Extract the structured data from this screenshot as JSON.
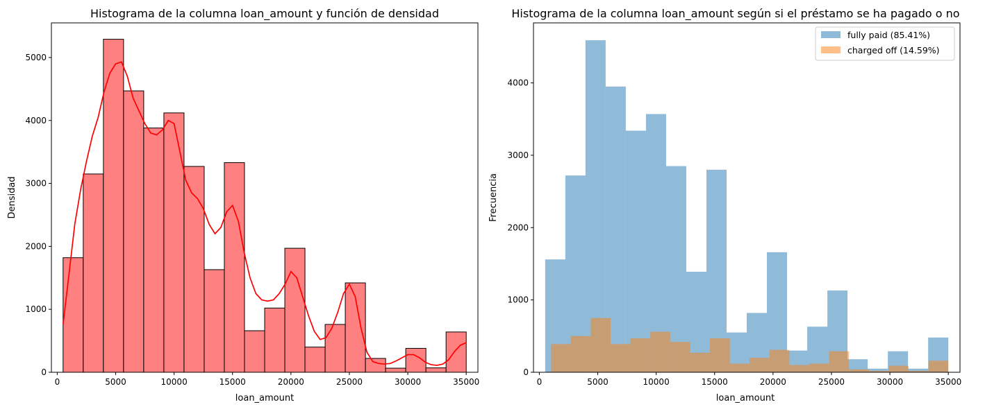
{
  "chart_data": [
    {
      "type": "bar",
      "title": "Histograma de la columna loan_amount y función de densidad",
      "xlabel": "loan_amount",
      "ylabel": "Densidad",
      "xlim": [
        -500,
        36000
      ],
      "ylim": [
        0,
        5550
      ],
      "x_ticks": [
        0,
        5000,
        10000,
        15000,
        20000,
        25000,
        30000,
        35000
      ],
      "y_ticks": [
        0,
        1000,
        2000,
        3000,
        4000,
        5000
      ],
      "bin_edges": [
        500,
        2225,
        3950,
        5675,
        7400,
        9125,
        10850,
        12575,
        14300,
        16025,
        17750,
        19475,
        21200,
        22925,
        24650,
        26375,
        28100,
        29825,
        31550,
        33275,
        35000
      ],
      "counts": [
        1820,
        3150,
        5290,
        4470,
        3880,
        4120,
        3270,
        1630,
        3330,
        660,
        1020,
        1970,
        400,
        760,
        1420,
        220,
        65,
        380,
        70,
        640
      ],
      "bar_color": "#ff8080",
      "bar_edge_color": "#000000",
      "kde": {
        "color": "#ff0000",
        "x": [
          500,
          1000,
          1500,
          2000,
          2500,
          3000,
          3500,
          4000,
          4500,
          5000,
          5500,
          6000,
          6500,
          7000,
          7500,
          8000,
          8500,
          9000,
          9500,
          10000,
          10500,
          11000,
          11500,
          12000,
          12500,
          13000,
          13500,
          14000,
          14500,
          15000,
          15500,
          16000,
          16500,
          17000,
          17500,
          18000,
          18500,
          19000,
          19500,
          20000,
          20500,
          21000,
          21500,
          22000,
          22500,
          23000,
          23500,
          24000,
          24500,
          25000,
          25500,
          26000,
          26500,
          27000,
          27500,
          28000,
          28500,
          29000,
          29500,
          30000,
          30500,
          31000,
          31500,
          32000,
          32500,
          33000,
          33500,
          34000,
          34500,
          35000
        ],
        "y": [
          760,
          1550,
          2350,
          2900,
          3350,
          3750,
          4050,
          4450,
          4750,
          4900,
          4930,
          4700,
          4350,
          4150,
          3950,
          3800,
          3770,
          3850,
          4000,
          3950,
          3500,
          3050,
          2850,
          2760,
          2600,
          2350,
          2200,
          2300,
          2550,
          2650,
          2400,
          1900,
          1500,
          1250,
          1150,
          1130,
          1150,
          1250,
          1400,
          1600,
          1500,
          1200,
          900,
          650,
          520,
          550,
          700,
          950,
          1250,
          1400,
          1200,
          700,
          320,
          170,
          140,
          130,
          140,
          180,
          230,
          280,
          280,
          230,
          160,
          120,
          110,
          130,
          200,
          330,
          430,
          470
        ]
      }
    },
    {
      "type": "bar",
      "title": "Histograma de la columna loan_amount según si el préstamo se ha pagado o no",
      "xlabel": "loan_amount",
      "ylabel": "Frecuencia",
      "xlim": [
        -500,
        36000
      ],
      "ylim": [
        0,
        4830
      ],
      "x_ticks": [
        0,
        5000,
        10000,
        15000,
        20000,
        25000,
        30000,
        35000
      ],
      "y_ticks": [
        0,
        1000,
        2000,
        3000,
        4000
      ],
      "legend_position": "top-right",
      "series": [
        {
          "name": "fully paid (85.41%)",
          "color": "#1f77b4",
          "opacity": 0.5,
          "bin_edges": [
            500,
            2225,
            3950,
            5675,
            7400,
            9125,
            10850,
            12575,
            14300,
            16025,
            17750,
            19475,
            21200,
            22925,
            24650,
            26375,
            28100,
            29825,
            31550,
            33275,
            35000
          ],
          "counts": [
            1560,
            2720,
            4590,
            3950,
            3340,
            3570,
            2850,
            1390,
            2800,
            550,
            820,
            1660,
            300,
            630,
            1130,
            180,
            50,
            290,
            50,
            480
          ]
        },
        {
          "name": "charged off (14.59%)",
          "color": "#ff7f0e",
          "opacity": 0.5,
          "bin_edges": [
            1000,
            2700,
            4400,
            6100,
            7800,
            9500,
            11200,
            12900,
            14600,
            16300,
            18000,
            19700,
            21400,
            23100,
            24800,
            26500,
            28200,
            29900,
            31600,
            33300,
            35000
          ],
          "counts": [
            390,
            500,
            750,
            390,
            470,
            560,
            420,
            270,
            470,
            120,
            200,
            310,
            100,
            120,
            290,
            40,
            20,
            90,
            20,
            160
          ]
        }
      ]
    }
  ]
}
